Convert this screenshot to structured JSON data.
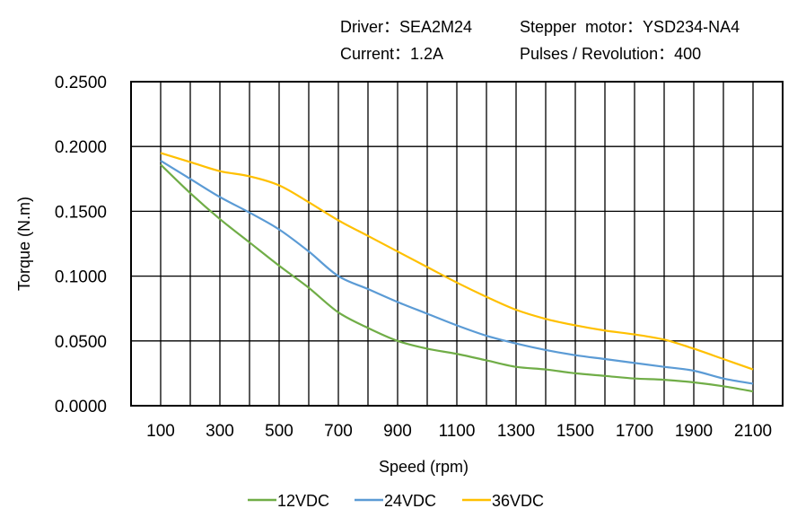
{
  "header": {
    "driver": "Driver：SEA2M24",
    "motor": "Stepper  motor：YSD234-NA4",
    "current": "Current：1.2A",
    "pulses": "Pulses / Revolution：400"
  },
  "chart_data": {
    "type": "line",
    "title": "",
    "xlabel": "Speed  (rpm)",
    "ylabel": "Torque (N.m)",
    "xlim": [
      0,
      2200
    ],
    "ylim": [
      0,
      0.25
    ],
    "grid": true,
    "legend_position": "bottom",
    "x_ticks": [
      100,
      300,
      500,
      700,
      900,
      1100,
      1300,
      1500,
      1700,
      1900,
      2100
    ],
    "y_ticks": [
      "0.0000",
      "0.0500",
      "0.1000",
      "0.1500",
      "0.2000",
      "0.2500"
    ],
    "x": [
      100,
      200,
      300,
      400,
      500,
      600,
      700,
      800,
      900,
      1000,
      1100,
      1200,
      1300,
      1400,
      1500,
      1600,
      1700,
      1800,
      1900,
      2000,
      2100
    ],
    "series": [
      {
        "name": "12VDC",
        "color": "#70ad47",
        "values": [
          0.186,
          0.164,
          0.144,
          0.126,
          0.108,
          0.091,
          0.072,
          0.06,
          0.05,
          0.044,
          0.04,
          0.035,
          0.03,
          0.028,
          0.025,
          0.023,
          0.021,
          0.02,
          0.018,
          0.015,
          0.011
        ]
      },
      {
        "name": "24VDC",
        "color": "#5b9bd5",
        "values": [
          0.189,
          0.175,
          0.161,
          0.149,
          0.136,
          0.119,
          0.1,
          0.09,
          0.08,
          0.071,
          0.062,
          0.054,
          0.048,
          0.043,
          0.039,
          0.036,
          0.033,
          0.03,
          0.027,
          0.021,
          0.017
        ]
      },
      {
        "name": "36VDC",
        "color": "#ffc000",
        "values": [
          0.195,
          0.188,
          0.181,
          0.177,
          0.17,
          0.157,
          0.143,
          0.131,
          0.119,
          0.107,
          0.095,
          0.084,
          0.074,
          0.067,
          0.062,
          0.058,
          0.055,
          0.051,
          0.044,
          0.036,
          0.028
        ]
      }
    ]
  }
}
